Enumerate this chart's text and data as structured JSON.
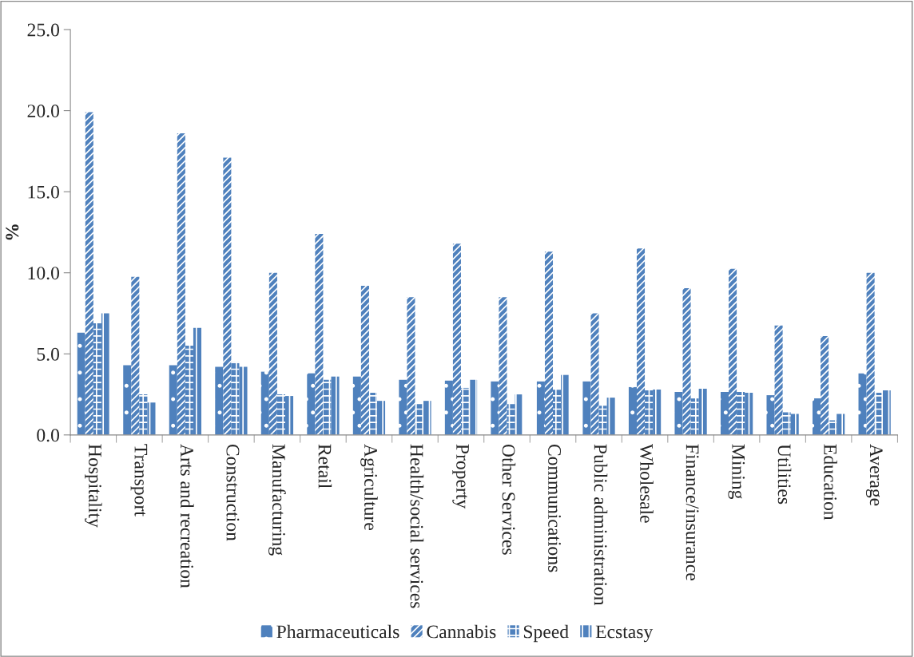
{
  "chart_data": {
    "type": "bar",
    "ylabel": "%",
    "categories": [
      "Hospitality",
      "Transport",
      "Arts and recreation",
      "Construction",
      "Manufacturing",
      "Retail",
      "Agriculture",
      "Health/social services",
      "Property",
      "Other Services",
      "Communications",
      "Public administration",
      "Wholesale",
      "Finance/insurance",
      "Mining",
      "Utilities",
      "Education",
      "Average"
    ],
    "series": [
      {
        "name": "Pharmaceuticals",
        "color": "#4f81bd",
        "values": [
          6.3,
          4.3,
          4.3,
          4.2,
          3.9,
          3.8,
          3.6,
          3.4,
          3.35,
          3.3,
          3.3,
          3.3,
          2.95,
          2.65,
          2.65,
          2.45,
          2.25,
          3.8
        ]
      },
      {
        "name": "Cannabis",
        "color": "#4f81bd",
        "values": [
          19.9,
          9.75,
          18.6,
          17.1,
          10.0,
          12.4,
          9.2,
          8.5,
          11.8,
          8.5,
          11.3,
          7.5,
          11.5,
          9.05,
          10.25,
          6.75,
          6.1,
          10.0
        ]
      },
      {
        "name": "Speed",
        "color": "#4f81bd",
        "values": [
          6.9,
          2.5,
          5.5,
          4.5,
          2.5,
          3.4,
          2.6,
          1.9,
          2.9,
          1.9,
          2.8,
          1.8,
          2.75,
          2.25,
          2.65,
          1.4,
          0.9,
          2.6
        ]
      },
      {
        "name": "Ecstasy",
        "color": "#4f81bd",
        "values": [
          7.5,
          2.0,
          6.6,
          4.2,
          2.4,
          3.6,
          2.1,
          2.1,
          3.4,
          2.5,
          3.7,
          2.3,
          2.8,
          2.85,
          2.6,
          1.3,
          1.3,
          2.75
        ]
      }
    ],
    "ylim": [
      0,
      25
    ],
    "yticks": [
      {
        "value": 0,
        "label": "0.0"
      },
      {
        "value": 5,
        "label": "5.0"
      },
      {
        "value": 10,
        "label": "10.0"
      },
      {
        "value": 15,
        "label": "15.0"
      },
      {
        "value": 20,
        "label": "20.0"
      },
      {
        "value": 25,
        "label": "25.0"
      }
    ],
    "grid": false,
    "legend": "bottom"
  }
}
